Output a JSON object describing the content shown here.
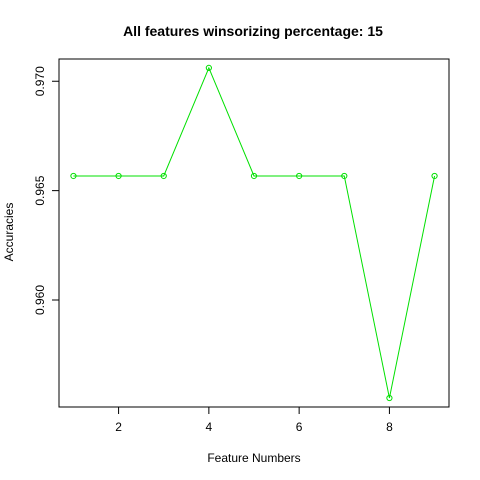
{
  "chart_data": {
    "type": "line",
    "title": "All features winsorizing percentage: 15",
    "xlabel": "Feature Numbers",
    "ylabel": "Accuracies",
    "x": [
      1,
      2,
      3,
      4,
      5,
      6,
      7,
      8,
      9
    ],
    "series": [
      {
        "values": [
          0.96567,
          0.96567,
          0.96567,
          0.97061,
          0.96567,
          0.96567,
          0.96567,
          0.95552,
          0.96567
        ],
        "color": "#00e000",
        "marker": "open-circle"
      }
    ],
    "xlim": [
      0.68,
      9.32
    ],
    "ylim": [
      0.955109,
      0.971017
    ],
    "x_ticks": [
      2,
      4,
      6,
      8
    ],
    "x_tick_labels": [
      "2",
      "4",
      "6",
      "8"
    ],
    "y_ticks": [
      0.96,
      0.965,
      0.97
    ],
    "y_tick_labels": [
      "0.960",
      "0.965",
      "0.970"
    ],
    "grid": false,
    "legend": "none"
  }
}
